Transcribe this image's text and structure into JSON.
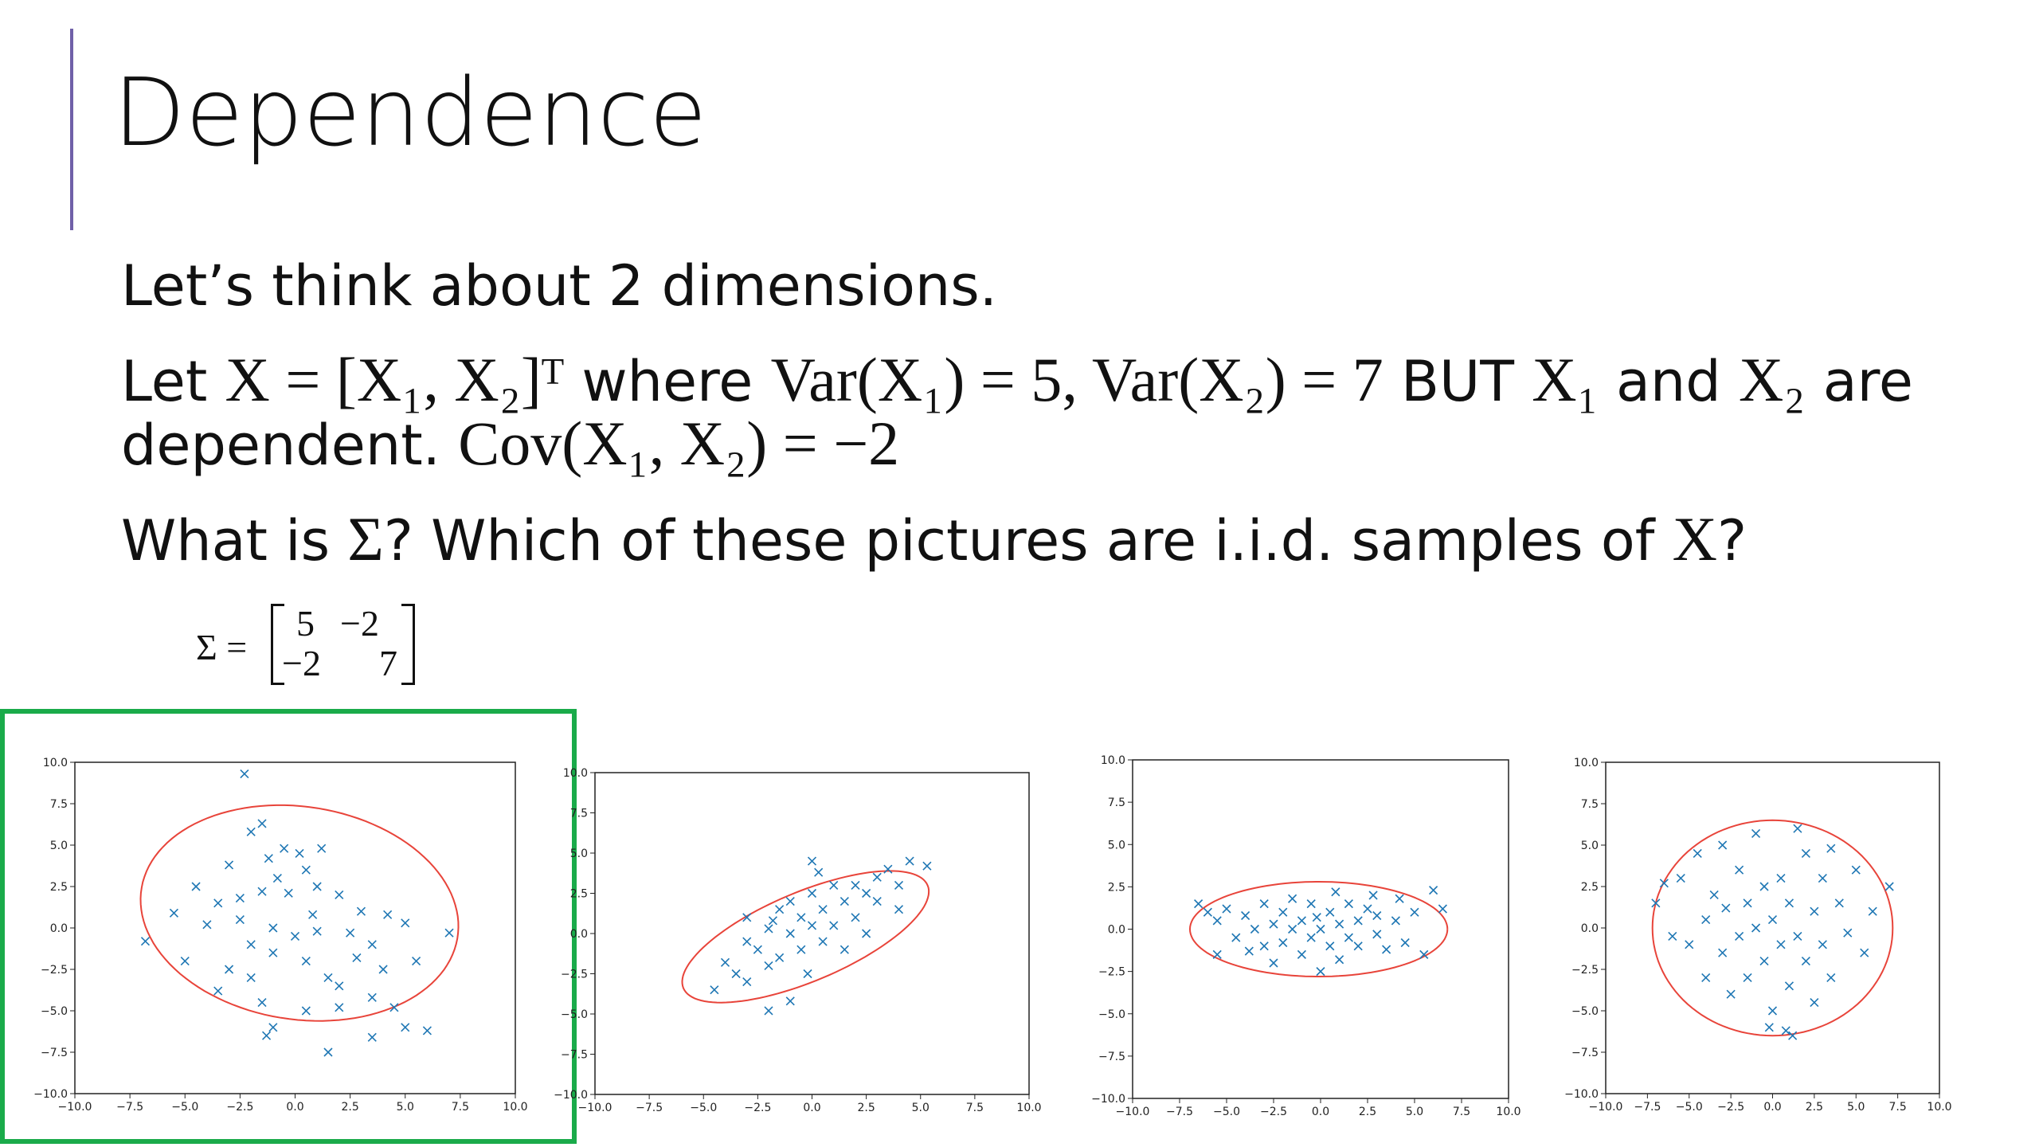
{
  "slide": {
    "title": "Dependence",
    "lines": [
      [
        "Let’s think about 2 dimensions."
      ],
      [
        "Let ",
        "X = [X₁, X₂]ᵀ",
        " where ",
        "Var(X₁) = 5, Var(X₂) = 7",
        " BUT ",
        "X₁",
        " and ",
        "X₂",
        " are"
      ],
      [
        "dependent. ",
        "Cov(X₁, X₂) = −2"
      ],
      [
        "What is ",
        "Σ",
        "? Which of these pictures are i.i.d. samples of ",
        "X",
        "?"
      ]
    ],
    "matrix": {
      "label": "Σ =",
      "cells": [
        [
          "5",
          "−2"
        ],
        [
          "−2",
          "7"
        ]
      ]
    }
  },
  "chart_data": [
    {
      "type": "scatter",
      "xlim": [
        -10,
        10
      ],
      "ylim": [
        -10,
        10
      ],
      "color": "#1f77b4",
      "ellipse_color": "#e8443a",
      "xticks": [
        {
          "value": -10,
          "label": "−10.0"
        },
        {
          "value": -7.5,
          "label": "−7.5"
        },
        {
          "value": -5,
          "label": "−5.0"
        },
        {
          "value": -2.5,
          "label": "−2.5"
        },
        {
          "value": 0,
          "label": "0.0"
        },
        {
          "value": 2.5,
          "label": "2.5"
        },
        {
          "value": 5,
          "label": "5.0"
        },
        {
          "value": 7.5,
          "label": "7.5"
        },
        {
          "value": 10,
          "label": "10.0"
        }
      ],
      "yticks": [
        {
          "value": -10,
          "label": "−10.0"
        },
        {
          "value": -7.5,
          "label": "−7.5"
        },
        {
          "value": -5,
          "label": "−5.0"
        },
        {
          "value": -2.5,
          "label": "−2.5"
        },
        {
          "value": 0,
          "label": "0.0"
        },
        {
          "value": 2.5,
          "label": "2.5"
        },
        {
          "value": 5,
          "label": "5.0"
        },
        {
          "value": 7.5,
          "label": "7.5"
        },
        {
          "value": 10,
          "label": "10.0"
        }
      ],
      "x": [
        -2.3,
        -1.5,
        -2,
        -0.5,
        0.2,
        1.2,
        -3,
        -1.2,
        0.5,
        -4.5,
        -3.5,
        -2.5,
        -1.5,
        -0.3,
        1,
        2,
        3,
        4.2,
        5,
        -6.8,
        -5.5,
        -4,
        -2.5,
        -1,
        0,
        1,
        2.5,
        3.5,
        7,
        -5,
        -3,
        -2,
        -1,
        0.5,
        1.5,
        2,
        4,
        5.5,
        -3.5,
        -1.5,
        0.5,
        2,
        3.5,
        4.5,
        -1,
        -1.3,
        1.5,
        3.5,
        5,
        6,
        -2,
        0.8,
        -0.8,
        2.8
      ],
      "values": [
        9.3,
        6.3,
        5.8,
        4.8,
        4.5,
        4.8,
        3.8,
        4.2,
        3.5,
        2.5,
        1.5,
        1.8,
        2.2,
        2.1,
        2.5,
        2,
        1,
        0.8,
        0.3,
        -0.8,
        0.9,
        0.2,
        0.5,
        0,
        -0.5,
        -0.2,
        -0.3,
        -1,
        -0.3,
        -2,
        -2.5,
        -3,
        -1.5,
        -2,
        -3,
        -3.5,
        -2.5,
        -2,
        -3.8,
        -4.5,
        -5,
        -4.8,
        -4.2,
        -4.8,
        -6,
        -6.5,
        -7.5,
        -6.6,
        -6,
        -6.2,
        -1,
        0.8,
        3,
        -1.8
      ],
      "ellipse": {
        "cx": 0.2,
        "cy": 0.9,
        "rx": 7.4,
        "ry": 6.3,
        "angle": -25
      },
      "highlight": true
    },
    {
      "type": "scatter",
      "xlim": [
        -10,
        10
      ],
      "ylim": [
        -10,
        10
      ],
      "color": "#1f77b4",
      "ellipse_color": "#e8443a",
      "xticks": [
        {
          "value": -10,
          "label": "−10.0"
        },
        {
          "value": -7.5,
          "label": "−7.5"
        },
        {
          "value": -5,
          "label": "−5.0"
        },
        {
          "value": -2.5,
          "label": "−2.5"
        },
        {
          "value": 0,
          "label": "0.0"
        },
        {
          "value": 2.5,
          "label": "2.5"
        },
        {
          "value": 5,
          "label": "5.0"
        },
        {
          "value": 7.5,
          "label": "7.5"
        },
        {
          "value": 10,
          "label": "10.0"
        }
      ],
      "yticks": [
        {
          "value": -10,
          "label": "−10.0"
        },
        {
          "value": -7.5,
          "label": "−7.5"
        },
        {
          "value": -5,
          "label": "−5.0"
        },
        {
          "value": -2.5,
          "label": "−2.5"
        },
        {
          "value": 0,
          "label": "0.0"
        },
        {
          "value": 2.5,
          "label": "2.5"
        },
        {
          "value": 5,
          "label": "5.0"
        },
        {
          "value": 7.5,
          "label": "7.5"
        },
        {
          "value": 10,
          "label": "10.0"
        }
      ],
      "x": [
        -4,
        -3.5,
        -3,
        -3,
        -2.5,
        -2,
        -2,
        -1.5,
        -1.5,
        -1,
        -1,
        -0.5,
        -0.5,
        0,
        0,
        0.5,
        0.5,
        1,
        1,
        1.5,
        2,
        2,
        2.5,
        3,
        3,
        3.5,
        4,
        4.5,
        5.3,
        -2,
        -4.5,
        -1,
        0,
        1.5,
        -3,
        0.3,
        -1.8,
        2.5,
        4,
        -0.2
      ],
      "values": [
        -1.8,
        -2.5,
        -0.5,
        1,
        -1,
        -2,
        0.3,
        -1.5,
        1.5,
        0,
        2,
        -1,
        1,
        0.5,
        2.5,
        -0.5,
        1.5,
        3,
        0.5,
        2,
        1,
        3,
        2.5,
        3.5,
        2,
        4,
        3,
        4.5,
        4.2,
        -4.8,
        -3.5,
        -4.2,
        4.5,
        -1,
        -3,
        3.8,
        0.8,
        0,
        1.5,
        -2.5
      ],
      "ellipse": {
        "cx": -0.3,
        "cy": -0.2,
        "rx": 6.5,
        "ry": 2.6,
        "angle": 32
      },
      "highlight": false
    },
    {
      "type": "scatter",
      "xlim": [
        -10,
        10
      ],
      "ylim": [
        -10,
        10
      ],
      "color": "#1f77b4",
      "ellipse_color": "#e8443a",
      "xticks": [
        {
          "value": -10,
          "label": "−10.0"
        },
        {
          "value": -7.5,
          "label": "−7.5"
        },
        {
          "value": -5,
          "label": "−5.0"
        },
        {
          "value": -2.5,
          "label": "−2.5"
        },
        {
          "value": 0,
          "label": "0.0"
        },
        {
          "value": 2.5,
          "label": "2.5"
        },
        {
          "value": 5,
          "label": "5.0"
        },
        {
          "value": 7.5,
          "label": "7.5"
        },
        {
          "value": 10,
          "label": "10.0"
        }
      ],
      "yticks": [
        {
          "value": -10,
          "label": "−10.0"
        },
        {
          "value": -7.5,
          "label": "−7.5"
        },
        {
          "value": -5,
          "label": "−5.0"
        },
        {
          "value": -2.5,
          "label": "−2.5"
        },
        {
          "value": 0,
          "label": "0.0"
        },
        {
          "value": 2.5,
          "label": "2.5"
        },
        {
          "value": 5,
          "label": "5.0"
        },
        {
          "value": 7.5,
          "label": "7.5"
        },
        {
          "value": 10,
          "label": "10.0"
        }
      ],
      "x": [
        -6.5,
        -6,
        -5.5,
        -5,
        -4.5,
        -4,
        -3.5,
        -3,
        -3,
        -2.5,
        -2,
        -2,
        -1.5,
        -1,
        -1,
        -0.5,
        -0.5,
        0,
        0,
        0.5,
        0.5,
        1,
        1,
        1.5,
        1.5,
        2,
        2,
        2.5,
        3,
        3,
        3.5,
        4,
        4.5,
        5,
        5.5,
        6,
        6.5,
        -5.5,
        -2.5,
        0.8,
        -1.5,
        2.8,
        -0.2,
        -3.8,
        4.2
      ],
      "values": [
        1.5,
        1,
        0.5,
        1.2,
        -0.5,
        0.8,
        0,
        -1,
        1.5,
        0.3,
        -0.8,
        1,
        0,
        -1.5,
        0.5,
        1.5,
        -0.5,
        0,
        -2.5,
        1,
        -1,
        0.3,
        -1.8,
        1.5,
        -0.5,
        0.5,
        -1,
        1.2,
        -0.3,
        0.8,
        -1.2,
        0.5,
        -0.8,
        1,
        -1.5,
        2.3,
        1.2,
        -1.5,
        -2,
        2.2,
        1.8,
        2,
        0.7,
        -1.3,
        1.8
      ],
      "ellipse": {
        "cx": -0.1,
        "cy": 0,
        "rx": 6.85,
        "ry": 2.8,
        "angle": 0
      },
      "highlight": false
    },
    {
      "type": "scatter",
      "xlim": [
        -10,
        10
      ],
      "ylim": [
        -10,
        10
      ],
      "color": "#1f77b4",
      "ellipse_color": "#e8443a",
      "xticks": [
        {
          "value": -10,
          "label": "−10.0"
        },
        {
          "value": -7.5,
          "label": "−7.5"
        },
        {
          "value": -5,
          "label": "−5.0"
        },
        {
          "value": -2.5,
          "label": "−2.5"
        },
        {
          "value": 0,
          "label": "0.0"
        },
        {
          "value": 2.5,
          "label": "2.5"
        },
        {
          "value": 5,
          "label": "5.0"
        },
        {
          "value": 7.5,
          "label": "7.5"
        },
        {
          "value": 10,
          "label": "10.0"
        }
      ],
      "yticks": [
        {
          "value": -10,
          "label": "−10.0"
        },
        {
          "value": -7.5,
          "label": "−7.5"
        },
        {
          "value": -5,
          "label": "−5.0"
        },
        {
          "value": -2.5,
          "label": "−2.5"
        },
        {
          "value": 0,
          "label": "0.0"
        },
        {
          "value": 2.5,
          "label": "2.5"
        },
        {
          "value": 5,
          "label": "5.0"
        },
        {
          "value": 7.5,
          "label": "7.5"
        },
        {
          "value": 10,
          "label": "10.0"
        }
      ],
      "x": [
        -7,
        -6.5,
        -6,
        -5.5,
        -5,
        -4.5,
        -4,
        -4,
        -3.5,
        -3,
        -3,
        -2.5,
        -2,
        -2,
        -1.5,
        -1.5,
        -1,
        -1,
        -0.5,
        -0.5,
        0,
        0,
        0.5,
        0.5,
        -0.2,
        1,
        1,
        1.5,
        1.5,
        2,
        2,
        2.5,
        2.5,
        3,
        3,
        3.5,
        4,
        4.5,
        5,
        5.5,
        6,
        7,
        -2.8,
        0.8,
        1.2,
        3.5
      ],
      "values": [
        1.5,
        2.7,
        -0.5,
        3,
        -1,
        4.5,
        0.5,
        -3,
        2,
        5,
        -1.5,
        -4,
        3.5,
        -0.5,
        1.5,
        -3,
        5.7,
        0,
        2.5,
        -2,
        0.5,
        -5,
        3,
        -1,
        -6,
        1.5,
        -3.5,
        6,
        -0.5,
        4.5,
        -2,
        1,
        -4.5,
        3,
        -1,
        -3,
        1.5,
        -0.3,
        3.5,
        -1.5,
        1,
        2.5,
        1.2,
        -6.2,
        -6.5,
        4.8
      ],
      "ellipse": {
        "cx": 0,
        "cy": 0,
        "rx": 7.2,
        "ry": 6.5,
        "angle": 0
      },
      "highlight": false
    }
  ]
}
